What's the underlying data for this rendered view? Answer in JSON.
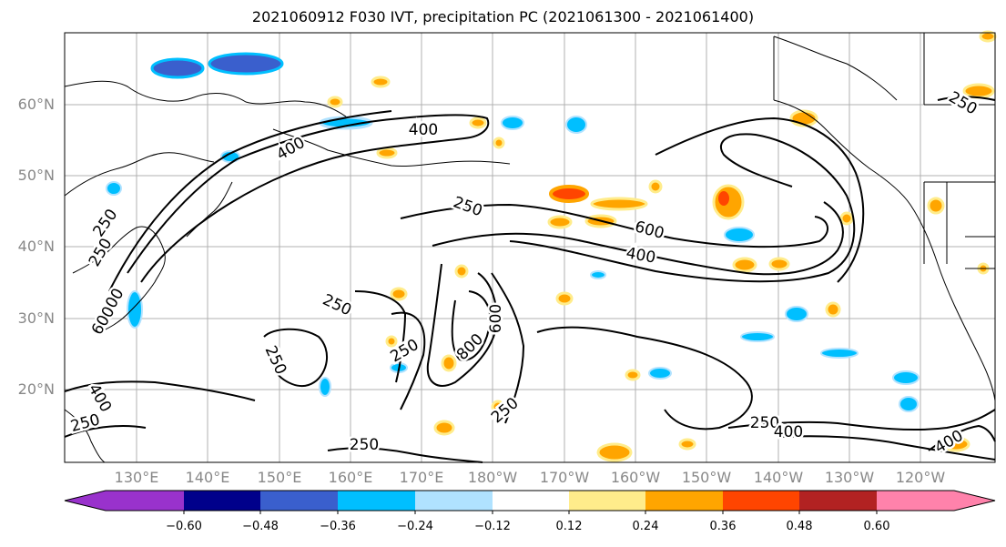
{
  "title": "2021060912 F030 IVT, precipitation PC (2021061300 - 2021061400)",
  "map": {
    "lat_labels": [
      "60°N",
      "50°N",
      "40°N",
      "30°N",
      "20°N"
    ],
    "lon_labels": [
      "130°E",
      "140°E",
      "150°E",
      "160°E",
      "170°E",
      "180°W",
      "170°W",
      "160°W",
      "150°W",
      "140°W",
      "130°W",
      "120°W"
    ],
    "contour_levels": [
      "250",
      "400",
      "600",
      "800"
    ],
    "contour_labels": [
      "400",
      "400",
      "250",
      "250",
      "600",
      "400",
      "250",
      "800",
      "600",
      "250",
      "250",
      "250",
      "800",
      "600",
      "250",
      "250",
      "400",
      "250",
      "400",
      "250",
      "400",
      "250"
    ]
  },
  "colorbar": {
    "ticks": [
      "−0.60",
      "−0.48",
      "−0.36",
      "−0.24",
      "−0.12",
      "0.12",
      "0.24",
      "0.36",
      "0.48",
      "0.60"
    ],
    "colors": [
      "#9932cc",
      "#00008b",
      "#3a5fcd",
      "#00bfff",
      "#b0e2ff",
      "#ffffff",
      "#ffec8b",
      "#ffa500",
      "#ff4500",
      "#b22222",
      "#ff82ab"
    ]
  }
}
